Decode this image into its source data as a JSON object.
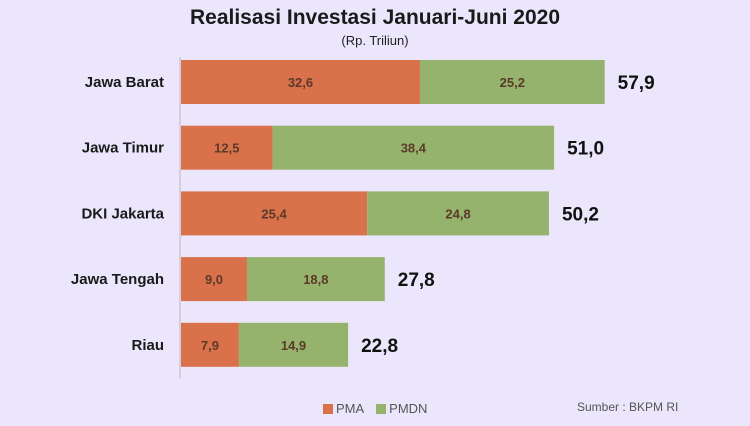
{
  "chart_data": {
    "type": "bar",
    "orientation": "horizontal",
    "stacked": true,
    "title": "Realisasi Investasi Januari-Juni 2020",
    "subtitle": "(Rp. Triliun)",
    "categories": [
      "Jawa Barat",
      "Jawa Timur",
      "DKI Jakarta",
      "Jawa Tengah",
      "Riau"
    ],
    "series": [
      {
        "name": "PMA",
        "values": [
          32.6,
          12.5,
          25.4,
          9.0,
          7.9
        ],
        "labels": [
          "32,6",
          "12,5",
          "25,4",
          "9,0",
          "7,9"
        ],
        "color": "#d9714a"
      },
      {
        "name": "PMDN",
        "values": [
          25.2,
          38.4,
          24.8,
          18.8,
          14.9
        ],
        "labels": [
          "25,2",
          "38,4",
          "24,8",
          "18,8",
          "14,9"
        ],
        "color": "#95b36c"
      }
    ],
    "totals": [
      "57,9",
      "51,0",
      "50,2",
      "27,8",
      "22,8"
    ],
    "grid": false,
    "legend": "bottom",
    "source": "Sumber : BKPM RI"
  }
}
